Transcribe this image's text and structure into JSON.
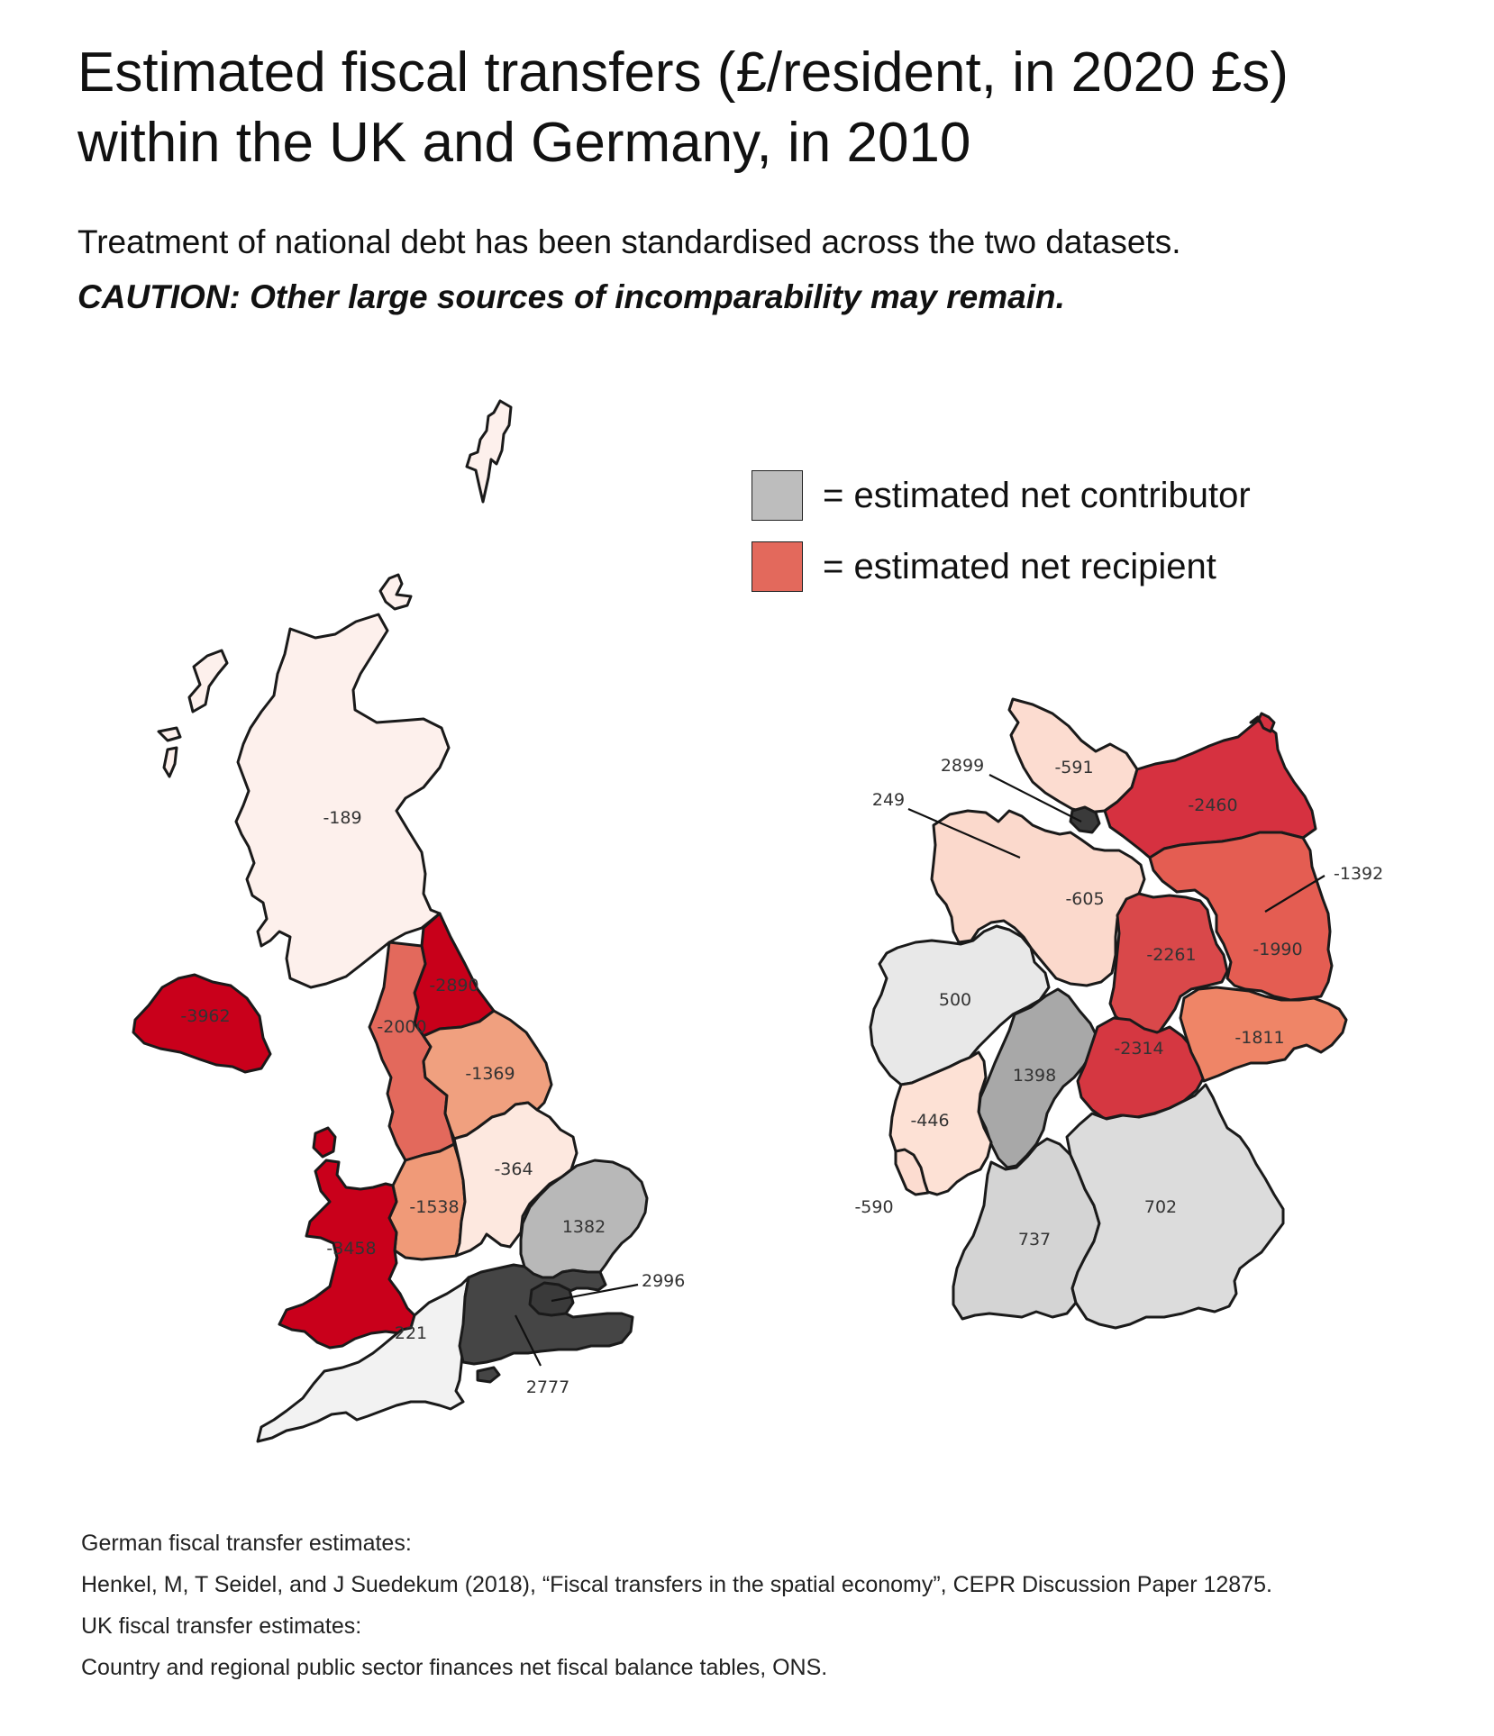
{
  "title": "Estimated fiscal transfers (£/resident, in 2020 £s) within the UK and Germany, in 2010",
  "subtitle": "Treatment of national debt has been standardised across the two datasets.",
  "caution": "CAUTION: Other large sources of incomparability may remain.",
  "legend": {
    "contributor": {
      "label": "= estimated net contributor",
      "color": "#bdbdbd"
    },
    "recipient": {
      "label": "= estimated net recipient",
      "color": "#e3695c"
    }
  },
  "uk_regions": {
    "scotland": {
      "value": "-189",
      "color": "#fdf0ec"
    },
    "northern_ireland": {
      "value": "-3962",
      "color": "#c9001b"
    },
    "north_east": {
      "value": "-2890",
      "color": "#c8001a"
    },
    "north_west": {
      "value": "-2000",
      "color": "#e3695c"
    },
    "yorkshire": {
      "value": "-1369",
      "color": "#f0a07f"
    },
    "east_midlands": {
      "value": "-364",
      "color": "#fde8df"
    },
    "west_midlands": {
      "value": "-1538",
      "color": "#f09a78"
    },
    "wales": {
      "value": "-3458",
      "color": "#c9001b"
    },
    "east_of_england": {
      "value": "1382",
      "color": "#b8b8b8"
    },
    "london": {
      "value": "2996",
      "color": "#3a3a3a"
    },
    "south_east": {
      "value": "2777",
      "color": "#454545"
    },
    "south_west": {
      "value": "221",
      "color": "#f2f2f2"
    }
  },
  "de_regions": {
    "schleswig_holstein": {
      "value": "-591",
      "color": "#fcdcd0"
    },
    "hamburg": {
      "value": "2899",
      "color": "#3a3a3a"
    },
    "bremen": {
      "value": "249",
      "color": "#e8e8e8"
    },
    "mecklenburg": {
      "value": "-2460",
      "color": "#d63140"
    },
    "niedersachsen": {
      "value": "-605",
      "color": "#fbd9cc"
    },
    "berlin": {
      "value": "-1392",
      "color": "#f2b48f"
    },
    "brandenburg": {
      "value": "-1990",
      "color": "#e45d52"
    },
    "sachsen_anhalt": {
      "value": "-2261",
      "color": "#d9484a"
    },
    "nrw": {
      "value": "500",
      "color": "#e8e8e8"
    },
    "hessen": {
      "value": "1398",
      "color": "#a8a8a8"
    },
    "thueringen": {
      "value": "-2314",
      "color": "#d53741"
    },
    "sachsen": {
      "value": "-1811",
      "color": "#ef8567"
    },
    "rheinland_pfalz": {
      "value": "-446",
      "color": "#fde1d5"
    },
    "saarland": {
      "value": "-590",
      "color": "#fcdcd0"
    },
    "baden_wuerttemberg": {
      "value": "737",
      "color": "#d4d4d4"
    },
    "bayern": {
      "value": "702",
      "color": "#dcdcdc"
    }
  },
  "sources": [
    "German fiscal transfer estimates:",
    "Henkel, M, T Seidel, and J Suedekum (2018), “Fiscal transfers in the spatial economy”, CEPR Discussion Paper 12875.",
    "UK fiscal transfer estimates:",
    "Country and regional public sector finances net fiscal balance tables, ONS."
  ]
}
